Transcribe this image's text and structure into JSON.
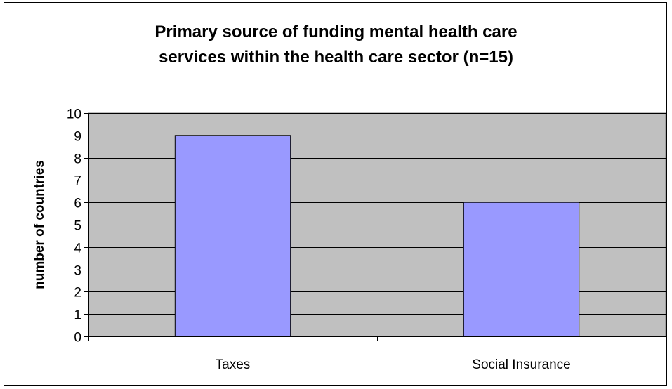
{
  "chart_data": {
    "type": "bar",
    "title_lines": [
      "Primary source of funding mental health care",
      "services within the health care sector (n=15)"
    ],
    "categories": [
      "Taxes",
      "Social Insurance"
    ],
    "values": [
      9,
      6
    ],
    "xlabel": "",
    "ylabel": "number of countries",
    "ylim": [
      0,
      10
    ],
    "yticks": [
      0,
      1,
      2,
      3,
      4,
      5,
      6,
      7,
      8,
      9,
      10
    ],
    "grid": true,
    "legend": "none",
    "colors": {
      "bar": "#9999FF",
      "plot_background": "#C0C0C0",
      "gridline": "#000000"
    }
  }
}
